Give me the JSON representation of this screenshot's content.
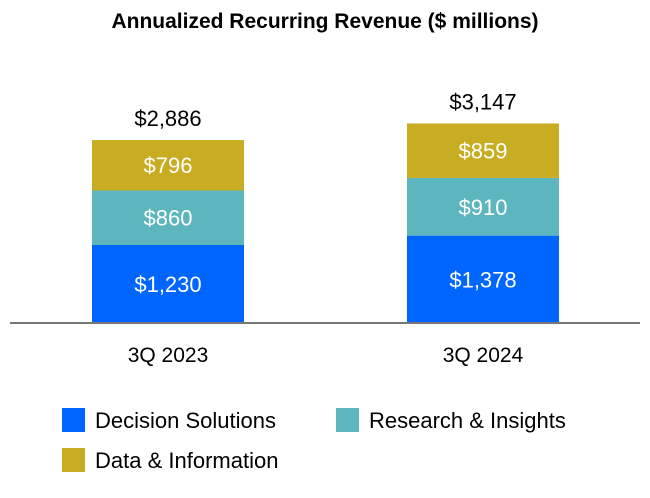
{
  "chart_data": {
    "type": "bar",
    "stacked": true,
    "title": "Annualized Recurring Revenue ($ millions)",
    "categories": [
      "3Q 2023",
      "3Q 2024"
    ],
    "totals": [
      2886,
      3147
    ],
    "total_labels": [
      "$2,886",
      "$3,147"
    ],
    "series": [
      {
        "name": "Decision Solutions",
        "values": [
          1230,
          1378
        ],
        "labels": [
          "$1,230",
          "$1,378"
        ],
        "color": "#0066FF"
      },
      {
        "name": "Research & Insights",
        "values": [
          860,
          910
        ],
        "labels": [
          "$860",
          "$910"
        ],
        "color": "#5DB6BD"
      },
      {
        "name": "Data & Information",
        "values": [
          796,
          859
        ],
        "labels": [
          "$796",
          "$859"
        ],
        "color": "#C8AC22"
      }
    ],
    "legend": "bottom",
    "grid": false
  }
}
